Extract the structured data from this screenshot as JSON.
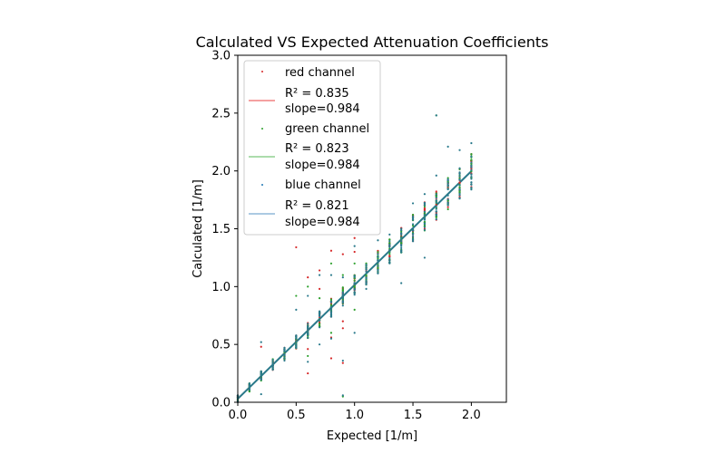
{
  "chart_data": {
    "type": "scatter",
    "title": "Calculated VS Expected Attenuation Coefficients",
    "xlabel": "Expected [1/m]",
    "ylabel": "Calculated [1/m]",
    "xlim": [
      0,
      2.3
    ],
    "ylim": [
      0,
      3.0
    ],
    "xticks": [
      "0.0",
      "0.5",
      "1.0",
      "1.5",
      "2.0"
    ],
    "xtick_values": [
      0,
      0.5,
      1.0,
      1.5,
      2.0
    ],
    "yticks": [
      "0.0",
      "0.5",
      "1.0",
      "1.5",
      "2.0",
      "2.5",
      "3.0"
    ],
    "ytick_values": [
      0,
      0.5,
      1.0,
      1.5,
      2.0,
      2.5,
      3.0
    ],
    "grid": false,
    "legend_position": "top-left",
    "x_levels": [
      0,
      0.1,
      0.2,
      0.3,
      0.4,
      0.5,
      0.6,
      0.7,
      0.8,
      0.9,
      1.0,
      1.1,
      1.2,
      1.3,
      1.4,
      1.5,
      1.6,
      1.7,
      1.8,
      1.9,
      2.0
    ],
    "series": [
      {
        "name": "red channel",
        "color": "#d62728",
        "r2_text": "R² = 0.835",
        "slope_text": "slope=0.984",
        "fit_slope": 0.984,
        "fit_intercept": 0.03,
        "fit_color": "#f08080",
        "outliers": [
          [
            0.5,
            1.34
          ],
          [
            0.6,
            0.25
          ],
          [
            0.6,
            1.08
          ],
          [
            0.7,
            1.14
          ],
          [
            0.7,
            0.98
          ],
          [
            0.8,
            1.31
          ],
          [
            0.8,
            0.56
          ],
          [
            0.8,
            0.38
          ],
          [
            0.9,
            1.28
          ],
          [
            0.9,
            0.7
          ],
          [
            0.9,
            0.64
          ],
          [
            0.9,
            0.34
          ],
          [
            1.0,
            1.42
          ],
          [
            1.0,
            1.3
          ],
          [
            0.2,
            0.48
          ],
          [
            0.3,
            0.28
          ],
          [
            0.6,
            0.46
          ]
        ]
      },
      {
        "name": "green channel",
        "color": "#2ca02c",
        "r2_text": "R² = 0.823",
        "slope_text": "slope=0.984",
        "fit_slope": 0.984,
        "fit_intercept": 0.03,
        "fit_color": "#90d090",
        "outliers": [
          [
            0.5,
            0.92
          ],
          [
            0.6,
            1.0
          ],
          [
            0.7,
            0.9
          ],
          [
            0.8,
            1.2
          ],
          [
            0.9,
            1.1
          ],
          [
            1.0,
            1.2
          ],
          [
            0.6,
            0.4
          ],
          [
            0.8,
            0.6
          ],
          [
            0.9,
            0.05
          ],
          [
            1.0,
            0.8
          ],
          [
            1.7,
            2.48
          ]
        ]
      },
      {
        "name": "blue channel",
        "color": "#1f77b4",
        "r2_text": "R² =  0.821",
        "slope_text": "slope=0.984",
        "fit_slope": 0.984,
        "fit_intercept": 0.03,
        "fit_color": "#8fb8d8",
        "outliers": [
          [
            0.2,
            0.52
          ],
          [
            0.2,
            0.07
          ],
          [
            0.4,
            0.36
          ],
          [
            0.5,
            0.8
          ],
          [
            0.6,
            0.35
          ],
          [
            0.6,
            0.92
          ],
          [
            0.7,
            1.1
          ],
          [
            0.7,
            0.5
          ],
          [
            0.8,
            1.1
          ],
          [
            0.8,
            0.55
          ],
          [
            0.9,
            1.08
          ],
          [
            0.9,
            0.36
          ],
          [
            0.9,
            0.06
          ],
          [
            1.0,
            0.6
          ],
          [
            1.0,
            1.35
          ],
          [
            1.1,
            0.98
          ],
          [
            1.2,
            1.4
          ],
          [
            1.3,
            1.45
          ],
          [
            1.4,
            1.03
          ],
          [
            1.4,
            1.5
          ],
          [
            1.5,
            1.72
          ],
          [
            1.6,
            1.25
          ],
          [
            1.6,
            1.8
          ],
          [
            1.7,
            1.96
          ],
          [
            1.8,
            2.21
          ],
          [
            1.9,
            2.18
          ],
          [
            2.0,
            2.24
          ],
          [
            2.0,
            1.84
          ],
          [
            1.7,
            2.48
          ]
        ]
      }
    ]
  }
}
